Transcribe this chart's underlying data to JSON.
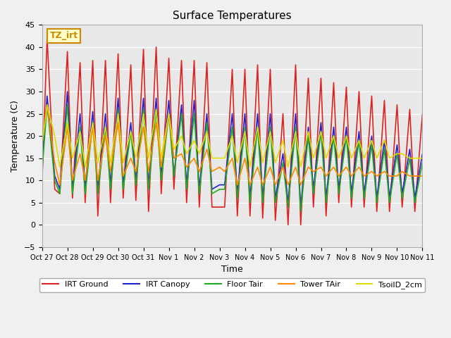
{
  "title": "Surface Temperatures",
  "xlabel": "Time",
  "ylabel": "Temperature (C)",
  "ylim": [
    -5,
    45
  ],
  "yticks": [
    -5,
    0,
    5,
    10,
    15,
    20,
    25,
    30,
    35,
    40,
    45
  ],
  "annotation_text": "TZ_irt",
  "annotation_color": "#cc8800",
  "background_color": "#e8e8e8",
  "legend": [
    {
      "label": "IRT Ground",
      "color": "#dd2222",
      "lw": 1.5
    },
    {
      "label": "IRT Canopy",
      "color": "#2222cc",
      "lw": 1.5
    },
    {
      "label": "Floor Tair",
      "color": "#22aa22",
      "lw": 1.5
    },
    {
      "label": "Tower TAir",
      "color": "#ff8800",
      "lw": 1.5
    },
    {
      "label": "TsoilD_2cm",
      "color": "#dddd00",
      "lw": 1.5
    }
  ],
  "xtick_labels": [
    "Oct 27",
    "Oct 28",
    "Oct 29",
    "Oct 30",
    "Oct 31",
    "Nov 1",
    "Nov 2",
    "Nov 3",
    "Nov 4",
    "Nov 5",
    "Nov 6",
    "Nov 7",
    "Nov 8",
    "Nov 9",
    "Nov 10",
    "Nov 11"
  ],
  "xtick_positions": [
    0,
    1,
    2,
    3,
    4,
    5,
    6,
    7,
    8,
    9,
    10,
    11,
    12,
    13,
    14,
    15
  ],
  "series": {
    "IRT_Ground": {
      "color": "#dd2222",
      "x": [
        0,
        0.2,
        0.5,
        0.7,
        1.0,
        1.2,
        1.5,
        1.7,
        2.0,
        2.2,
        2.5,
        2.7,
        3.0,
        3.2,
        3.5,
        3.7,
        4.0,
        4.2,
        4.5,
        4.7,
        5.0,
        5.2,
        5.5,
        5.7,
        6.0,
        6.2,
        6.5,
        6.7,
        7.0,
        7.2,
        7.5,
        7.7,
        8.0,
        8.2,
        8.5,
        8.7,
        9.0,
        9.2,
        9.5,
        9.7,
        10.0,
        10.2,
        10.5,
        10.7,
        11.0,
        11.2,
        11.5,
        11.7,
        12.0,
        12.2,
        12.5,
        12.7,
        13.0,
        13.2,
        13.5,
        13.7,
        14.0,
        14.2,
        14.5,
        14.7,
        15.0
      ],
      "y": [
        9.5,
        42,
        8,
        7,
        39,
        6,
        36.5,
        5,
        37,
        2,
        37,
        5,
        38.5,
        6,
        36,
        5.5,
        39.5,
        3,
        40,
        7,
        37.5,
        8,
        37,
        5,
        37,
        4,
        36.5,
        4,
        4,
        4,
        35,
        2,
        35,
        2,
        36,
        1.5,
        35,
        1,
        25,
        0,
        36,
        0,
        33,
        4,
        33,
        2,
        32,
        5,
        31,
        4,
        30,
        4,
        29,
        3,
        28,
        3,
        27,
        4,
        26,
        3,
        25
      ]
    },
    "IRT_Canopy": {
      "color": "#2222cc",
      "x": [
        0,
        0.2,
        0.5,
        0.7,
        1.0,
        1.2,
        1.5,
        1.7,
        2.0,
        2.2,
        2.5,
        2.7,
        3.0,
        3.2,
        3.5,
        3.7,
        4.0,
        4.2,
        4.5,
        4.7,
        5.0,
        5.2,
        5.5,
        5.7,
        6.0,
        6.2,
        6.5,
        6.7,
        7.0,
        7.2,
        7.5,
        7.7,
        8.0,
        8.2,
        8.5,
        8.7,
        9.0,
        9.2,
        9.5,
        9.7,
        10.0,
        10.2,
        10.5,
        10.7,
        11.0,
        11.2,
        11.5,
        11.7,
        12.0,
        12.2,
        12.5,
        12.7,
        13.0,
        13.2,
        13.5,
        13.7,
        14.0,
        14.2,
        14.5,
        14.7,
        15.0
      ],
      "y": [
        13,
        29,
        11,
        8,
        30,
        8,
        25,
        8,
        25.5,
        8,
        25,
        9,
        28.5,
        9,
        23,
        10,
        28.5,
        9,
        28.5,
        11,
        28,
        11,
        27,
        9,
        28,
        8,
        25,
        8,
        9,
        9,
        25,
        7,
        25,
        6,
        25,
        6,
        25,
        6,
        16,
        5,
        25,
        4,
        22,
        8,
        23,
        6,
        22,
        8,
        22,
        7,
        21,
        7,
        20,
        6,
        19,
        6,
        18,
        7,
        17,
        6,
        16
      ]
    },
    "Floor_Tair": {
      "color": "#22aa22",
      "x": [
        0,
        0.2,
        0.5,
        0.7,
        1.0,
        1.2,
        1.5,
        1.7,
        2.0,
        2.2,
        2.5,
        2.7,
        3.0,
        3.2,
        3.5,
        3.7,
        4.0,
        4.2,
        4.5,
        4.7,
        5.0,
        5.2,
        5.5,
        5.7,
        6.0,
        6.2,
        6.5,
        6.7,
        7.0,
        7.2,
        7.5,
        7.7,
        8.0,
        8.2,
        8.5,
        8.7,
        9.0,
        9.2,
        9.5,
        9.7,
        10.0,
        10.2,
        10.5,
        10.7,
        11.0,
        11.2,
        11.5,
        11.7,
        12.0,
        12.2,
        12.5,
        12.7,
        13.0,
        13.2,
        13.5,
        13.7,
        14.0,
        14.2,
        14.5,
        14.7,
        15.0
      ],
      "y": [
        12,
        27,
        10,
        7,
        27,
        7,
        22,
        7,
        23,
        7,
        22,
        8,
        26,
        8,
        21,
        9,
        26,
        8,
        26,
        10,
        25,
        11,
        25,
        8,
        25,
        7,
        23,
        7,
        8,
        8,
        22,
        6,
        22,
        5,
        22,
        5,
        22,
        5,
        14,
        4,
        22,
        3,
        20,
        7,
        21,
        5,
        20,
        7,
        20,
        6,
        19,
        6,
        18,
        5,
        17,
        5,
        16,
        6,
        15,
        5,
        14
      ]
    },
    "Tower_TAir": {
      "color": "#ff8800",
      "x": [
        0,
        0.2,
        0.5,
        0.7,
        1.0,
        1.2,
        1.5,
        1.7,
        2.0,
        2.2,
        2.5,
        2.7,
        3.0,
        3.2,
        3.5,
        3.7,
        4.0,
        4.2,
        4.5,
        4.7,
        5.0,
        5.2,
        5.5,
        5.7,
        6.0,
        6.2,
        6.5,
        6.7,
        7.0,
        7.2,
        7.5,
        7.7,
        8.0,
        8.2,
        8.5,
        8.7,
        9.0,
        9.2,
        9.5,
        9.7,
        10.0,
        10.2,
        10.5,
        10.7,
        11.0,
        11.2,
        11.5,
        11.7,
        12.0,
        12.2,
        12.5,
        12.7,
        13.0,
        13.2,
        13.5,
        13.7,
        14.0,
        14.2,
        14.5,
        14.7,
        15.0
      ],
      "y": [
        18,
        27,
        14,
        9,
        22,
        10,
        16,
        10,
        22,
        10,
        20,
        12,
        23,
        11,
        15,
        12,
        22,
        12,
        23,
        13,
        25,
        15,
        16,
        13,
        15,
        12,
        17,
        12,
        13,
        12,
        15,
        9,
        15,
        9,
        13,
        9,
        13,
        9,
        13,
        9,
        13,
        9,
        13,
        12,
        13,
        11,
        13,
        11,
        13,
        11,
        13,
        11,
        12,
        11,
        12,
        11,
        11,
        12,
        11,
        11,
        11
      ]
    },
    "TsoilD_2cm": {
      "color": "#dddd00",
      "x": [
        0,
        0.2,
        0.5,
        0.7,
        1.0,
        1.2,
        1.5,
        1.7,
        2.0,
        2.2,
        2.5,
        2.7,
        3.0,
        3.2,
        3.5,
        3.7,
        4.0,
        4.2,
        4.5,
        4.7,
        5.0,
        5.2,
        5.5,
        5.7,
        6.0,
        6.2,
        6.5,
        6.7,
        7.0,
        7.2,
        7.5,
        7.7,
        8.0,
        8.2,
        8.5,
        8.7,
        9.0,
        9.2,
        9.5,
        9.7,
        10.0,
        10.2,
        10.5,
        10.7,
        11.0,
        11.2,
        11.5,
        11.7,
        12.0,
        12.2,
        12.5,
        12.7,
        13.0,
        13.2,
        13.5,
        13.7,
        14.0,
        14.2,
        14.5,
        14.7,
        15.0
      ],
      "y": [
        18,
        27,
        20,
        13,
        23,
        15,
        21,
        13,
        23,
        14,
        22,
        14,
        25,
        14,
        21,
        15,
        25,
        15,
        26,
        15,
        25,
        17,
        20,
        16,
        19,
        16,
        21,
        15,
        15,
        15,
        20,
        14,
        21,
        13,
        22,
        14,
        21,
        14,
        19,
        13,
        21,
        13,
        21,
        15,
        21,
        15,
        20,
        15,
        20,
        15,
        19,
        15,
        19,
        15,
        19,
        15,
        16,
        16,
        15,
        15,
        15
      ]
    }
  }
}
